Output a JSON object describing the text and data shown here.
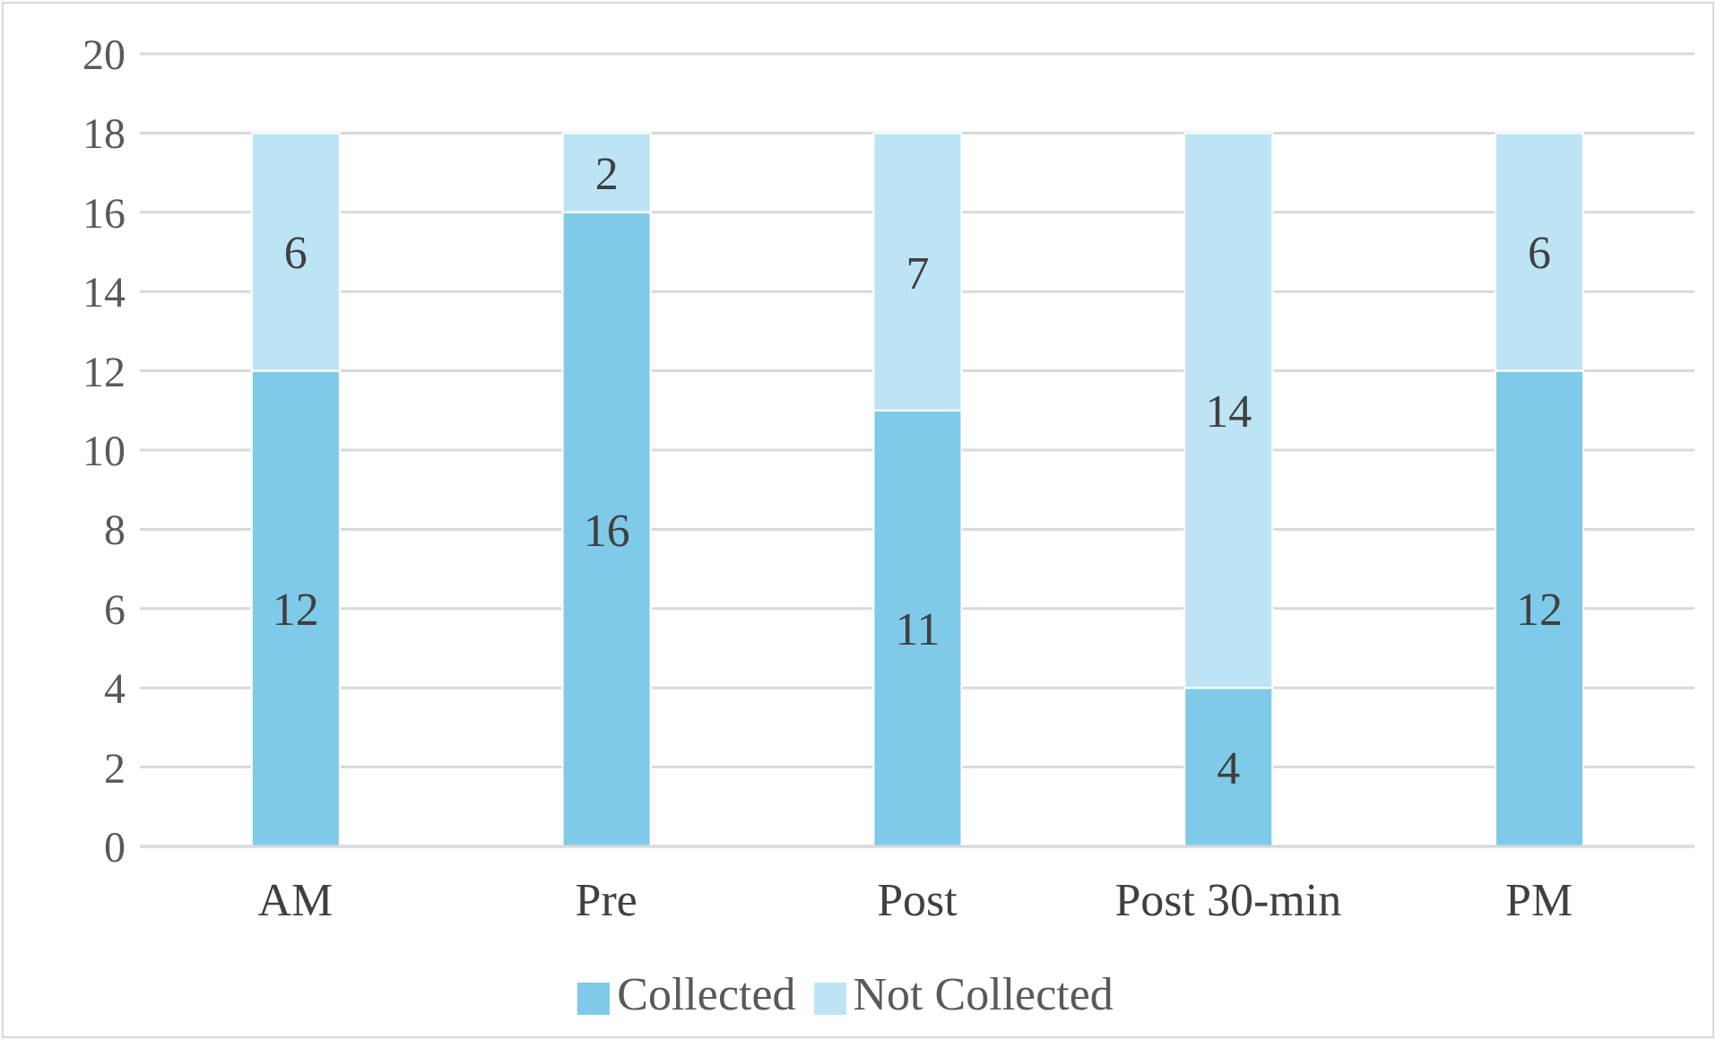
{
  "chart_data": {
    "type": "bar",
    "stacked": true,
    "categories": [
      "AM",
      "Pre",
      "Post",
      "Post 30-min",
      "PM"
    ],
    "series": [
      {
        "name": "Collected",
        "color": "#7ecae8",
        "values": [
          12,
          16,
          11,
          4,
          12
        ]
      },
      {
        "name": "Not Collected",
        "color": "#bde4f4",
        "values": [
          6,
          2,
          7,
          14,
          6
        ]
      }
    ],
    "ylim": [
      0,
      20
    ],
    "yticks": [
      0,
      2,
      4,
      6,
      8,
      10,
      12,
      14,
      16,
      18,
      20
    ],
    "grid": "y",
    "legend": "bottom",
    "data_labels": true
  }
}
